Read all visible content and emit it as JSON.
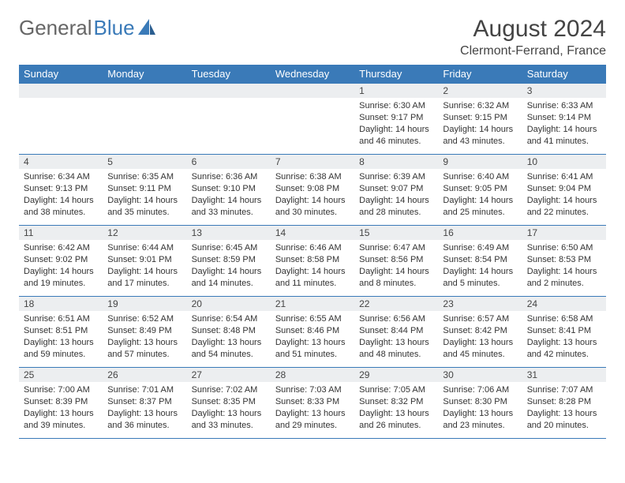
{
  "brand": {
    "part1": "General",
    "part2": "Blue"
  },
  "colors": {
    "header_bg": "#3a7ab8",
    "header_text": "#ffffff",
    "daynum_bg": "#eceef0",
    "rule": "#3a7ab8",
    "text": "#333333",
    "logo_blue": "#3a7ab8",
    "logo_gray": "#666666"
  },
  "title": {
    "month": "August 2024",
    "location": "Clermont-Ferrand, France"
  },
  "day_headers": [
    "Sunday",
    "Monday",
    "Tuesday",
    "Wednesday",
    "Thursday",
    "Friday",
    "Saturday"
  ],
  "weeks": [
    [
      {
        "day": "",
        "lines": [
          "",
          "",
          "",
          ""
        ]
      },
      {
        "day": "",
        "lines": [
          "",
          "",
          "",
          ""
        ]
      },
      {
        "day": "",
        "lines": [
          "",
          "",
          "",
          ""
        ]
      },
      {
        "day": "",
        "lines": [
          "",
          "",
          "",
          ""
        ]
      },
      {
        "day": "1",
        "lines": [
          "Sunrise: 6:30 AM",
          "Sunset: 9:17 PM",
          "Daylight: 14 hours",
          "and 46 minutes."
        ]
      },
      {
        "day": "2",
        "lines": [
          "Sunrise: 6:32 AM",
          "Sunset: 9:15 PM",
          "Daylight: 14 hours",
          "and 43 minutes."
        ]
      },
      {
        "day": "3",
        "lines": [
          "Sunrise: 6:33 AM",
          "Sunset: 9:14 PM",
          "Daylight: 14 hours",
          "and 41 minutes."
        ]
      }
    ],
    [
      {
        "day": "4",
        "lines": [
          "Sunrise: 6:34 AM",
          "Sunset: 9:13 PM",
          "Daylight: 14 hours",
          "and 38 minutes."
        ]
      },
      {
        "day": "5",
        "lines": [
          "Sunrise: 6:35 AM",
          "Sunset: 9:11 PM",
          "Daylight: 14 hours",
          "and 35 minutes."
        ]
      },
      {
        "day": "6",
        "lines": [
          "Sunrise: 6:36 AM",
          "Sunset: 9:10 PM",
          "Daylight: 14 hours",
          "and 33 minutes."
        ]
      },
      {
        "day": "7",
        "lines": [
          "Sunrise: 6:38 AM",
          "Sunset: 9:08 PM",
          "Daylight: 14 hours",
          "and 30 minutes."
        ]
      },
      {
        "day": "8",
        "lines": [
          "Sunrise: 6:39 AM",
          "Sunset: 9:07 PM",
          "Daylight: 14 hours",
          "and 28 minutes."
        ]
      },
      {
        "day": "9",
        "lines": [
          "Sunrise: 6:40 AM",
          "Sunset: 9:05 PM",
          "Daylight: 14 hours",
          "and 25 minutes."
        ]
      },
      {
        "day": "10",
        "lines": [
          "Sunrise: 6:41 AM",
          "Sunset: 9:04 PM",
          "Daylight: 14 hours",
          "and 22 minutes."
        ]
      }
    ],
    [
      {
        "day": "11",
        "lines": [
          "Sunrise: 6:42 AM",
          "Sunset: 9:02 PM",
          "Daylight: 14 hours",
          "and 19 minutes."
        ]
      },
      {
        "day": "12",
        "lines": [
          "Sunrise: 6:44 AM",
          "Sunset: 9:01 PM",
          "Daylight: 14 hours",
          "and 17 minutes."
        ]
      },
      {
        "day": "13",
        "lines": [
          "Sunrise: 6:45 AM",
          "Sunset: 8:59 PM",
          "Daylight: 14 hours",
          "and 14 minutes."
        ]
      },
      {
        "day": "14",
        "lines": [
          "Sunrise: 6:46 AM",
          "Sunset: 8:58 PM",
          "Daylight: 14 hours",
          "and 11 minutes."
        ]
      },
      {
        "day": "15",
        "lines": [
          "Sunrise: 6:47 AM",
          "Sunset: 8:56 PM",
          "Daylight: 14 hours",
          "and 8 minutes."
        ]
      },
      {
        "day": "16",
        "lines": [
          "Sunrise: 6:49 AM",
          "Sunset: 8:54 PM",
          "Daylight: 14 hours",
          "and 5 minutes."
        ]
      },
      {
        "day": "17",
        "lines": [
          "Sunrise: 6:50 AM",
          "Sunset: 8:53 PM",
          "Daylight: 14 hours",
          "and 2 minutes."
        ]
      }
    ],
    [
      {
        "day": "18",
        "lines": [
          "Sunrise: 6:51 AM",
          "Sunset: 8:51 PM",
          "Daylight: 13 hours",
          "and 59 minutes."
        ]
      },
      {
        "day": "19",
        "lines": [
          "Sunrise: 6:52 AM",
          "Sunset: 8:49 PM",
          "Daylight: 13 hours",
          "and 57 minutes."
        ]
      },
      {
        "day": "20",
        "lines": [
          "Sunrise: 6:54 AM",
          "Sunset: 8:48 PM",
          "Daylight: 13 hours",
          "and 54 minutes."
        ]
      },
      {
        "day": "21",
        "lines": [
          "Sunrise: 6:55 AM",
          "Sunset: 8:46 PM",
          "Daylight: 13 hours",
          "and 51 minutes."
        ]
      },
      {
        "day": "22",
        "lines": [
          "Sunrise: 6:56 AM",
          "Sunset: 8:44 PM",
          "Daylight: 13 hours",
          "and 48 minutes."
        ]
      },
      {
        "day": "23",
        "lines": [
          "Sunrise: 6:57 AM",
          "Sunset: 8:42 PM",
          "Daylight: 13 hours",
          "and 45 minutes."
        ]
      },
      {
        "day": "24",
        "lines": [
          "Sunrise: 6:58 AM",
          "Sunset: 8:41 PM",
          "Daylight: 13 hours",
          "and 42 minutes."
        ]
      }
    ],
    [
      {
        "day": "25",
        "lines": [
          "Sunrise: 7:00 AM",
          "Sunset: 8:39 PM",
          "Daylight: 13 hours",
          "and 39 minutes."
        ]
      },
      {
        "day": "26",
        "lines": [
          "Sunrise: 7:01 AM",
          "Sunset: 8:37 PM",
          "Daylight: 13 hours",
          "and 36 minutes."
        ]
      },
      {
        "day": "27",
        "lines": [
          "Sunrise: 7:02 AM",
          "Sunset: 8:35 PM",
          "Daylight: 13 hours",
          "and 33 minutes."
        ]
      },
      {
        "day": "28",
        "lines": [
          "Sunrise: 7:03 AM",
          "Sunset: 8:33 PM",
          "Daylight: 13 hours",
          "and 29 minutes."
        ]
      },
      {
        "day": "29",
        "lines": [
          "Sunrise: 7:05 AM",
          "Sunset: 8:32 PM",
          "Daylight: 13 hours",
          "and 26 minutes."
        ]
      },
      {
        "day": "30",
        "lines": [
          "Sunrise: 7:06 AM",
          "Sunset: 8:30 PM",
          "Daylight: 13 hours",
          "and 23 minutes."
        ]
      },
      {
        "day": "31",
        "lines": [
          "Sunrise: 7:07 AM",
          "Sunset: 8:28 PM",
          "Daylight: 13 hours",
          "and 20 minutes."
        ]
      }
    ]
  ]
}
